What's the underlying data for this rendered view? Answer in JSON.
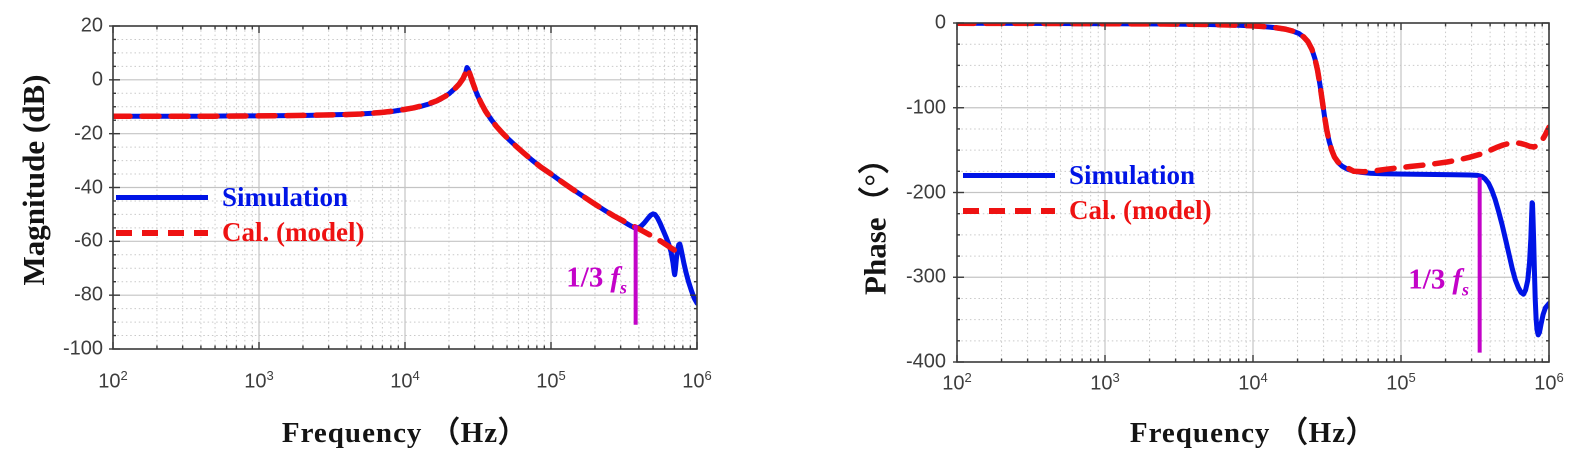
{
  "colors": {
    "simulation": "#0014e6",
    "model": "#ee1212",
    "annotation": "#c303c8",
    "grid_major": "#c4c4c4",
    "grid_minor": "#c9c9c9",
    "axis": "#3a3a3a",
    "tick_label": "#3d3d3d",
    "background": "#ffffff"
  },
  "chart_data": [
    {
      "type": "line",
      "title": "",
      "xlabel": "Frequency （Hz）",
      "ylabel": "Magnitude (dB)",
      "x_scale": "log",
      "x_log_range": [
        2,
        6
      ],
      "x_tick_exponents": [
        2,
        3,
        4,
        5,
        6
      ],
      "y_range": [
        -100,
        20
      ],
      "y_ticks": [
        20,
        0,
        -20,
        -40,
        -60,
        -80,
        -100
      ],
      "y_minor_step": 5,
      "grid": true,
      "legend": [
        {
          "label": "Simulation",
          "style": "solid"
        },
        {
          "label": "Cal. (model)",
          "style": "dashed"
        }
      ],
      "annotation": {
        "prefix": "1/3",
        "symbol": "f",
        "sub": "s",
        "x": 380000,
        "y1": -54,
        "y2": -91
      },
      "series": [
        {
          "name": "Simulation",
          "style": "solid",
          "width": 5,
          "points": [
            [
              100,
              -13.5
            ],
            [
              200,
              -13.5
            ],
            [
              400,
              -13.5
            ],
            [
              700,
              -13.4
            ],
            [
              1000,
              -13.4
            ],
            [
              1500,
              -13.3
            ],
            [
              2200,
              -13.2
            ],
            [
              3200,
              -13.0
            ],
            [
              4500,
              -12.8
            ],
            [
              6000,
              -12.4
            ],
            [
              8000,
              -11.8
            ],
            [
              10000,
              -11.0
            ],
            [
              12500,
              -10.0
            ],
            [
              15000,
              -8.8
            ],
            [
              17500,
              -7.2
            ],
            [
              20000,
              -5.2
            ],
            [
              22000,
              -3.2
            ],
            [
              23800,
              -1.2
            ],
            [
              25200,
              0.8
            ],
            [
              26100,
              2.8
            ],
            [
              26600,
              4.6
            ],
            [
              27100,
              3.9
            ],
            [
              27800,
              2.2
            ],
            [
              28800,
              -0.5
            ],
            [
              30000,
              -3.2
            ],
            [
              31500,
              -6.0
            ],
            [
              33500,
              -9.0
            ],
            [
              36000,
              -12.0
            ],
            [
              39000,
              -14.8
            ],
            [
              42500,
              -17.4
            ],
            [
              47000,
              -20.0
            ],
            [
              52000,
              -22.4
            ],
            [
              58000,
              -24.8
            ],
            [
              65000,
              -27.2
            ],
            [
              74000,
              -29.8
            ],
            [
              85000,
              -32.4
            ],
            [
              100000,
              -35.0
            ],
            [
              118000,
              -37.8
            ],
            [
              140000,
              -40.6
            ],
            [
              165000,
              -43.2
            ],
            [
              195000,
              -45.8
            ],
            [
              230000,
              -48.3
            ],
            [
              270000,
              -50.6
            ],
            [
              310000,
              -52.5
            ],
            [
              345000,
              -54.0
            ],
            [
              370000,
              -54.9
            ],
            [
              390000,
              -55.1
            ],
            [
              410000,
              -54.6
            ],
            [
              435000,
              -53.2
            ],
            [
              460000,
              -51.5
            ],
            [
              482000,
              -50.3
            ],
            [
              500000,
              -49.8
            ],
            [
              515000,
              -50.0
            ],
            [
              535000,
              -51.2
            ],
            [
              558000,
              -53.2
            ],
            [
              585000,
              -55.8
            ],
            [
              612000,
              -58.3
            ],
            [
              640000,
              -61.0
            ],
            [
              665000,
              -64.0
            ],
            [
              685000,
              -68.0
            ],
            [
              697000,
              -71.3
            ],
            [
              703000,
              -72.4
            ],
            [
              711000,
              -70.5
            ],
            [
              722000,
              -66.8
            ],
            [
              736000,
              -63.0
            ],
            [
              750000,
              -61.2
            ],
            [
              762000,
              -61.0
            ],
            [
              776000,
              -62.6
            ],
            [
              793000,
              -65.2
            ],
            [
              815000,
              -68.3
            ],
            [
              842000,
              -71.7
            ],
            [
              875000,
              -75.0
            ],
            [
              915000,
              -78.3
            ],
            [
              955000,
              -81.0
            ],
            [
              1000000,
              -83.0
            ]
          ]
        },
        {
          "name": "Cal. (model)",
          "style": "dashed",
          "width": 5.5,
          "points": [
            [
              100,
              -13.5
            ],
            [
              500,
              -13.5
            ],
            [
              1000,
              -13.4
            ],
            [
              2000,
              -13.2
            ],
            [
              3500,
              -13.0
            ],
            [
              5000,
              -12.7
            ],
            [
              7000,
              -12.1
            ],
            [
              9000,
              -11.4
            ],
            [
              11500,
              -10.4
            ],
            [
              14000,
              -9.2
            ],
            [
              16500,
              -7.8
            ],
            [
              19000,
              -6.0
            ],
            [
              21500,
              -3.8
            ],
            [
              23500,
              -1.6
            ],
            [
              25000,
              0.5
            ],
            [
              26100,
              2.8
            ],
            [
              26600,
              4.4
            ],
            [
              27200,
              3.6
            ],
            [
              28000,
              1.7
            ],
            [
              29200,
              -1.2
            ],
            [
              30800,
              -4.6
            ],
            [
              33000,
              -8.3
            ],
            [
              35500,
              -11.5
            ],
            [
              38500,
              -14.4
            ],
            [
              42000,
              -17.1
            ],
            [
              46500,
              -19.8
            ],
            [
              52000,
              -22.4
            ],
            [
              58000,
              -24.8
            ],
            [
              65000,
              -27.2
            ],
            [
              74000,
              -29.8
            ],
            [
              85000,
              -32.4
            ],
            [
              100000,
              -35.0
            ],
            [
              118000,
              -37.8
            ],
            [
              140000,
              -40.6
            ],
            [
              165000,
              -43.2
            ],
            [
              195000,
              -45.8
            ],
            [
              230000,
              -48.3
            ],
            [
              270000,
              -50.6
            ],
            [
              310000,
              -52.3
            ],
            [
              350000,
              -53.8
            ],
            [
              390000,
              -55.1
            ],
            [
              430000,
              -56.3
            ],
            [
              475000,
              -57.6
            ],
            [
              520000,
              -58.8
            ],
            [
              570000,
              -60.1
            ],
            [
              620000,
              -61.4
            ],
            [
              670000,
              -62.6
            ],
            [
              720000,
              -63.7
            ],
            [
              770000,
              -64.7
            ],
            [
              820000,
              -65.5
            ]
          ]
        }
      ]
    },
    {
      "type": "line",
      "title": "",
      "xlabel": "Frequency （Hz）",
      "ylabel": "Phase（°）",
      "x_scale": "log",
      "x_log_range": [
        2,
        6
      ],
      "x_tick_exponents": [
        2,
        3,
        4,
        5,
        6
      ],
      "y_range": [
        -400,
        0
      ],
      "y_ticks": [
        0,
        -100,
        -200,
        -300,
        -400
      ],
      "y_minor_step": 25,
      "grid": true,
      "legend": [
        {
          "label": "Simulation",
          "style": "solid"
        },
        {
          "label": "Cal. (model)",
          "style": "dashed"
        }
      ],
      "annotation": {
        "prefix": "1/3",
        "symbol": "f",
        "sub": "s",
        "x": 340000,
        "y1": -182,
        "y2": -389
      },
      "series": [
        {
          "name": "Simulation",
          "style": "solid",
          "width": 5,
          "points": [
            [
              100,
              -0.4
            ],
            [
              300,
              -0.5
            ],
            [
              1000,
              -0.8
            ],
            [
              2500,
              -1.2
            ],
            [
              5000,
              -1.8
            ],
            [
              8000,
              -2.6
            ],
            [
              11000,
              -3.8
            ],
            [
              14000,
              -5.4
            ],
            [
              16500,
              -7.2
            ],
            [
              18500,
              -9.4
            ],
            [
              20500,
              -12.5
            ],
            [
              22000,
              -16.5
            ],
            [
              23500,
              -22
            ],
            [
              25000,
              -31
            ],
            [
              26200,
              -42
            ],
            [
              27300,
              -56
            ],
            [
              28400,
              -74
            ],
            [
              29400,
              -92
            ],
            [
              30400,
              -110
            ],
            [
              31500,
              -126
            ],
            [
              32700,
              -140
            ],
            [
              34000,
              -150
            ],
            [
              35500,
              -158
            ],
            [
              37500,
              -164.5
            ],
            [
              40000,
              -169
            ],
            [
              43500,
              -172.5
            ],
            [
              48000,
              -174.8
            ],
            [
              54000,
              -176.3
            ],
            [
              62000,
              -177.2
            ],
            [
              75000,
              -177.8
            ],
            [
              95000,
              -178.2
            ],
            [
              125000,
              -178.5
            ],
            [
              170000,
              -178.8
            ],
            [
              230000,
              -179
            ],
            [
              290000,
              -179.3
            ],
            [
              330000,
              -179.8
            ],
            [
              352000,
              -181
            ],
            [
              370000,
              -184
            ],
            [
              390000,
              -189
            ],
            [
              410000,
              -197
            ],
            [
              432000,
              -208
            ],
            [
              456000,
              -222
            ],
            [
              482000,
              -238
            ],
            [
              510000,
              -256
            ],
            [
              538000,
              -274
            ],
            [
              565000,
              -290
            ],
            [
              592000,
              -303
            ],
            [
              620000,
              -312
            ],
            [
              648000,
              -318
            ],
            [
              672000,
              -320
            ],
            [
              695000,
              -315
            ],
            [
              718000,
              -304
            ],
            [
              738000,
              -283
            ],
            [
              753000,
              -255
            ],
            [
              763000,
              -228
            ],
            [
              769000,
              -212
            ],
            [
              774000,
              -213
            ],
            [
              780000,
              -230
            ],
            [
              788000,
              -258
            ],
            [
              797000,
              -292
            ],
            [
              807000,
              -325
            ],
            [
              818000,
              -349
            ],
            [
              830000,
              -362
            ],
            [
              845000,
              -368
            ],
            [
              862000,
              -365
            ],
            [
              885000,
              -355
            ],
            [
              912000,
              -344
            ],
            [
              945000,
              -336
            ],
            [
              1000000,
              -331
            ]
          ]
        },
        {
          "name": "Cal. (model)",
          "style": "dashed",
          "width": 5.5,
          "points": [
            [
              100,
              -0.4
            ],
            [
              300,
              -0.5
            ],
            [
              1000,
              -0.8
            ],
            [
              2500,
              -1.2
            ],
            [
              5000,
              -1.8
            ],
            [
              8000,
              -2.6
            ],
            [
              11000,
              -3.8
            ],
            [
              14000,
              -5.4
            ],
            [
              16500,
              -7.2
            ],
            [
              18500,
              -9.4
            ],
            [
              20500,
              -12.5
            ],
            [
              22000,
              -16.5
            ],
            [
              23500,
              -22
            ],
            [
              25000,
              -31
            ],
            [
              26200,
              -42
            ],
            [
              27300,
              -56
            ],
            [
              28400,
              -74
            ],
            [
              29400,
              -92
            ],
            [
              30400,
              -110
            ],
            [
              31500,
              -126
            ],
            [
              32700,
              -140
            ],
            [
              34000,
              -150
            ],
            [
              35500,
              -158
            ],
            [
              37500,
              -164
            ],
            [
              40000,
              -168
            ],
            [
              43500,
              -171
            ],
            [
              48000,
              -175
            ],
            [
              56000,
              -175.5
            ],
            [
              66000,
              -174.5
            ],
            [
              80000,
              -172.5
            ],
            [
              95000,
              -171
            ],
            [
              115000,
              -169.3
            ],
            [
              140000,
              -167.8
            ],
            [
              170000,
              -166
            ],
            [
              205000,
              -164
            ],
            [
              245000,
              -161.5
            ],
            [
              290000,
              -158.5
            ],
            [
              340000,
              -155
            ],
            [
              390000,
              -151
            ],
            [
              440000,
              -147
            ],
            [
              490000,
              -144
            ],
            [
              540000,
              -142
            ],
            [
              590000,
              -141.3
            ],
            [
              640000,
              -142
            ],
            [
              690000,
              -143.5
            ],
            [
              740000,
              -145.5
            ],
            [
              790000,
              -146.3
            ],
            [
              840000,
              -144.5
            ],
            [
              890000,
              -139.5
            ],
            [
              940000,
              -132.5
            ],
            [
              1000000,
              -123
            ]
          ]
        }
      ]
    }
  ]
}
